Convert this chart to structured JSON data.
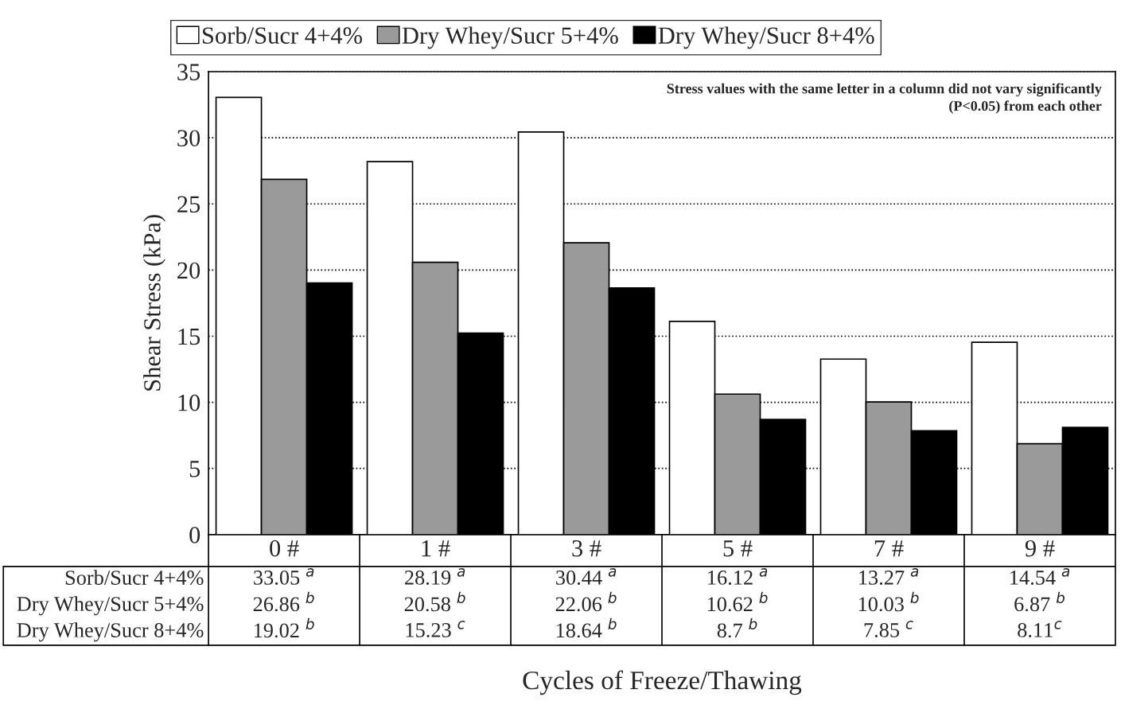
{
  "chart_data": {
    "type": "bar",
    "xlabel": "Cycles of Freeze/Thawing",
    "ylabel": "Shear Stress (kPa)",
    "categories": [
      "0 #",
      "1 #",
      "3 #",
      "5 #",
      "7 #",
      "9 #"
    ],
    "series": [
      {
        "name": "Sorb/Sucr 4+4%",
        "color": "#ffffff",
        "values": [
          33.05,
          28.19,
          30.44,
          16.12,
          13.27,
          14.54
        ],
        "value_labels": [
          "33.05 $^{a}$",
          "28.19 $^{a}$",
          "30.44 $^{a}$",
          "16.12 $^{a}$",
          "13.27 $^{a}$",
          "14.54 $^{a}$"
        ]
      },
      {
        "name": "Dry Whey/Sucr 5+4%",
        "color": "#9a9a9a",
        "values": [
          26.86,
          20.58,
          22.06,
          10.62,
          10.03,
          6.87
        ],
        "value_labels": [
          "26.86 $^{b}$",
          "20.58 $^{b}$",
          "22.06 $^{b}$",
          "10.62 $^{b}$",
          "10.03 $^{b}$",
          "6.87 $^{b}$"
        ]
      },
      {
        "name": "Dry Whey/Sucr 8+4%",
        "color": "#000000",
        "values": [
          19.02,
          15.23,
          18.64,
          8.7,
          7.85,
          8.11
        ],
        "value_labels": [
          "19.02 $^{b}$",
          "15.23 $^{c}$",
          "18.64 $^{b}$",
          "8.7 $^{b}$",
          "7.85 $^{c}$",
          "8.11$^{c}$"
        ]
      }
    ],
    "ylim": [
      0,
      35
    ],
    "yticks": [
      0,
      5,
      10,
      15,
      20,
      25,
      30,
      35
    ],
    "grid": "y",
    "legend": "top",
    "annotations": [
      "Stress values with the same letter in a column did not vary significantly (P<0.05) from each other"
    ]
  }
}
